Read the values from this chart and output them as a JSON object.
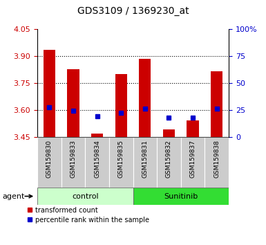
{
  "title": "GDS3109 / 1369230_at",
  "samples": [
    "GSM159830",
    "GSM159833",
    "GSM159834",
    "GSM159835",
    "GSM159831",
    "GSM159832",
    "GSM159837",
    "GSM159838"
  ],
  "red_bar_top": [
    3.935,
    3.83,
    3.47,
    3.8,
    3.885,
    3.495,
    3.545,
    3.815
  ],
  "red_bar_base": 3.45,
  "blue_sq_y": [
    3.615,
    3.597,
    3.565,
    3.585,
    3.608,
    3.557,
    3.557,
    3.608
  ],
  "ylim_left": [
    3.45,
    4.05
  ],
  "yticks_left": [
    3.45,
    3.6,
    3.75,
    3.9,
    4.05
  ],
  "ylim_right": [
    0,
    100
  ],
  "yticks_right": [
    0,
    25,
    50,
    75,
    100
  ],
  "ytick_labels_right": [
    "0",
    "25",
    "50",
    "75",
    "100%"
  ],
  "ylabel_left_color": "#cc0000",
  "ylabel_right_color": "#0000cc",
  "bar_color": "#cc0000",
  "blue_color": "#0000cc",
  "control_bg_light": "#ccffcc",
  "sunitinib_bg": "#33dd33",
  "tick_bg": "#cccccc",
  "group_label_control": "control",
  "group_label_sunitinib": "Sunitinib",
  "legend_red": "transformed count",
  "legend_blue": "percentile rank within the sample",
  "agent_label": "agent",
  "grid_ticks": [
    3.6,
    3.75,
    3.9
  ],
  "figsize": [
    3.85,
    3.54
  ],
  "dpi": 100
}
